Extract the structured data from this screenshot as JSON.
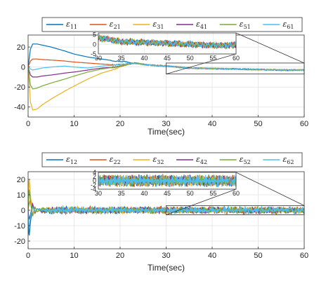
{
  "chart_data": [
    {
      "type": "line",
      "xlabel": "Time(sec)",
      "ylabel": "",
      "xlim": [
        0,
        60
      ],
      "ylim": [
        -50,
        32
      ],
      "xticks": [
        0,
        10,
        20,
        30,
        40,
        50,
        60
      ],
      "yticks": [
        -40,
        -20,
        0,
        20
      ],
      "grid": true,
      "legend": "top",
      "series": [
        {
          "name": "ε11",
          "sym": "ε",
          "sub": "11",
          "color": "#0072BD",
          "x": [
            0,
            0.5,
            1,
            2,
            3,
            5,
            8,
            10,
            13,
            16,
            19,
            21,
            23,
            26,
            30,
            35,
            40,
            45,
            50,
            55,
            60
          ],
          "y": [
            0,
            18,
            23,
            23,
            22,
            20,
            16,
            13,
            10,
            8,
            6,
            5.5,
            4,
            2,
            1,
            -1,
            -1.5,
            -2,
            -2.5,
            -3,
            -3
          ]
        },
        {
          "name": "ε21",
          "sym": "ε",
          "sub": "21",
          "color": "#D95319",
          "x": [
            0,
            0.5,
            1,
            2,
            3,
            5,
            8,
            10,
            13,
            16,
            19,
            21,
            23,
            26,
            30,
            35,
            40,
            45,
            50,
            55,
            60
          ],
          "y": [
            0,
            6,
            8,
            8,
            7.5,
            7,
            6,
            5,
            4,
            3,
            2,
            3,
            4,
            2,
            1,
            -1,
            -1.5,
            -2,
            -2.5,
            -3,
            -3
          ]
        },
        {
          "name": "ε31",
          "sym": "ε",
          "sub": "31",
          "color": "#EDB120",
          "x": [
            0,
            0.5,
            1,
            2,
            3,
            5,
            8,
            10,
            13,
            16,
            19,
            21,
            23,
            26,
            30,
            35,
            40,
            45,
            50,
            55,
            60
          ],
          "y": [
            0,
            -35,
            -43,
            -42,
            -38,
            -32,
            -24,
            -19,
            -12,
            -6,
            -2,
            2,
            4,
            2,
            1,
            -1,
            -1.5,
            -2,
            -2.5,
            -3,
            -3
          ]
        },
        {
          "name": "ε41",
          "sym": "ε",
          "sub": "41",
          "color": "#7E2F8E",
          "x": [
            0,
            0.5,
            1,
            2,
            3,
            5,
            8,
            10,
            13,
            16,
            19,
            21,
            23,
            26,
            30,
            35,
            40,
            45,
            50,
            55,
            60
          ],
          "y": [
            0,
            -8,
            -10,
            -10,
            -9,
            -8,
            -6,
            -5,
            -3,
            -1,
            0,
            2,
            4,
            2,
            1,
            -1,
            -1.5,
            -2,
            -2.5,
            -3,
            -3
          ]
        },
        {
          "name": "ε51",
          "sym": "ε",
          "sub": "51",
          "color": "#77AC30",
          "x": [
            0,
            0.5,
            1,
            2,
            3,
            5,
            8,
            10,
            13,
            16,
            19,
            21,
            23,
            26,
            30,
            35,
            40,
            45,
            50,
            55,
            60
          ],
          "y": [
            0,
            -18,
            -22,
            -21,
            -19,
            -16,
            -12,
            -9,
            -5,
            -2,
            0,
            2,
            4,
            2,
            1,
            -1,
            -1.5,
            -2,
            -2.5,
            -3,
            -3
          ]
        },
        {
          "name": "ε61",
          "sym": "ε",
          "sub": "61",
          "color": "#4DBEEE",
          "x": [
            0,
            0.5,
            1,
            2,
            3,
            5,
            8,
            10,
            13,
            16,
            19,
            21,
            23,
            26,
            30,
            35,
            40,
            45,
            50,
            55,
            60
          ],
          "y": [
            0,
            -2,
            -3,
            -2,
            -1,
            0,
            1,
            0,
            -1,
            1,
            2,
            3,
            4,
            2,
            1,
            -1,
            -1.5,
            -2,
            -2.5,
            -3,
            -3
          ]
        }
      ],
      "inset": {
        "xlim": [
          30,
          60
        ],
        "ylim": [
          -5,
          6
        ],
        "xticks": [
          30,
          35,
          40,
          45,
          50,
          55,
          60
        ],
        "yticks": [
          -5,
          0,
          5
        ],
        "zoom_xlim": [
          30,
          60
        ],
        "zoom_ylim": [
          -7,
          4
        ]
      }
    },
    {
      "type": "line",
      "xlabel": "Time(sec)",
      "ylabel": "",
      "xlim": [
        0,
        60
      ],
      "ylim": [
        -25,
        25
      ],
      "xticks": [
        0,
        10,
        20,
        30,
        40,
        50,
        60
      ],
      "yticks": [
        -20,
        -10,
        0,
        10,
        20
      ],
      "grid": true,
      "legend": "top",
      "noise_amplitude": 2.5,
      "series": [
        {
          "name": "ε12",
          "sym": "ε",
          "sub": "12",
          "color": "#0072BD",
          "x": [
            0,
            0.2,
            0.5,
            1,
            1.5,
            2,
            3,
            5
          ],
          "y": [
            0,
            -18,
            -8,
            3,
            -2,
            1,
            -1,
            0
          ]
        },
        {
          "name": "ε22",
          "sym": "ε",
          "sub": "22",
          "color": "#D95319",
          "x": [
            0,
            0.2,
            0.5,
            1,
            1.5,
            2,
            3,
            5
          ],
          "y": [
            0,
            4,
            7,
            3,
            -2,
            1,
            -1,
            0
          ]
        },
        {
          "name": "ε32",
          "sym": "ε",
          "sub": "32",
          "color": "#EDB120",
          "x": [
            0,
            0.2,
            0.5,
            1,
            1.5,
            2,
            3,
            5
          ],
          "y": [
            0,
            22,
            10,
            -3,
            2,
            -1,
            1,
            0
          ]
        },
        {
          "name": "ε42",
          "sym": "ε",
          "sub": "42",
          "color": "#7E2F8E",
          "x": [
            0,
            0.2,
            0.5,
            1,
            1.5,
            2,
            3,
            5
          ],
          "y": [
            0,
            -6,
            -3,
            4,
            -1,
            1,
            0,
            0
          ]
        },
        {
          "name": "ε52",
          "sym": "ε",
          "sub": "52",
          "color": "#77AC30",
          "x": [
            0,
            0.2,
            0.5,
            1,
            1.5,
            2,
            3,
            5
          ],
          "y": [
            0,
            15,
            5,
            -4,
            2,
            -1,
            1,
            0
          ]
        },
        {
          "name": "ε62",
          "sym": "ε",
          "sub": "62",
          "color": "#4DBEEE",
          "x": [
            0,
            0.2,
            0.5,
            1,
            1.5,
            2,
            3,
            5
          ],
          "y": [
            0,
            -12,
            -4,
            2,
            -1,
            1,
            0,
            0
          ]
        }
      ],
      "inset": {
        "xlim": [
          30,
          60
        ],
        "ylim": [
          -4,
          4
        ],
        "xticks": [
          30,
          35,
          40,
          45,
          50,
          55,
          60
        ],
        "yticks": [
          -4,
          -2,
          0,
          2,
          4
        ],
        "zoom_xlim": [
          30,
          60
        ],
        "zoom_ylim": [
          -3,
          3
        ]
      }
    }
  ]
}
